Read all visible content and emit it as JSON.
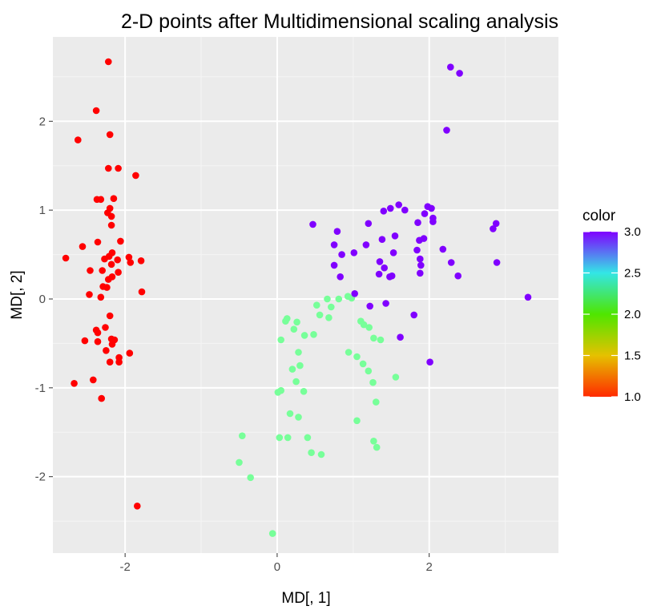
{
  "chart_data": {
    "type": "scatter",
    "title": "2-D points after Multidimensional scaling analysis",
    "xlabel": "MD[, 1]",
    "ylabel": "MD[, 2]",
    "xlim": [
      -2.95,
      3.7
    ],
    "ylim": [
      -2.86,
      2.95
    ],
    "x_ticks": [
      -2,
      0,
      2
    ],
    "x_tick_labels": [
      "-2",
      "0",
      "2"
    ],
    "y_ticks": [
      -2,
      -1,
      0,
      1,
      2
    ],
    "y_tick_labels": [
      "-2",
      "-1",
      "0",
      "1",
      "2"
    ],
    "grid": true,
    "legend": {
      "title": "color",
      "position": "right",
      "type": "colorbar",
      "range": [
        1.0,
        3.0
      ],
      "breaks": [
        1.0,
        1.5,
        2.0,
        2.5,
        3.0
      ],
      "break_labels": [
        "1.0",
        "1.5",
        "2.0",
        "2.5",
        "3.0"
      ]
    },
    "color_scale": {
      "stops": [
        {
          "value": 1.0,
          "color": "#ff2a00"
        },
        {
          "value": 1.5,
          "color": "#e5c100"
        },
        {
          "value": 2.0,
          "color": "#4fe600"
        },
        {
          "value": 2.5,
          "color": "#33e6e6"
        },
        {
          "value": 3.0,
          "color": "#8000ff"
        }
      ]
    },
    "series": [
      {
        "name": "1",
        "color_value": 1.0,
        "color": "#ff0000",
        "points": [
          [
            -2.22,
            2.67
          ],
          [
            -2.38,
            2.12
          ],
          [
            -2.62,
            1.79
          ],
          [
            -2.2,
            1.85
          ],
          [
            -2.22,
            1.47
          ],
          [
            -2.09,
            1.47
          ],
          [
            -1.86,
            1.39
          ],
          [
            -2.37,
            1.12
          ],
          [
            -2.32,
            1.12
          ],
          [
            -2.15,
            1.13
          ],
          [
            -2.2,
            1.02
          ],
          [
            -2.23,
            0.97
          ],
          [
            -2.18,
            0.93
          ],
          [
            -2.18,
            0.83
          ],
          [
            -2.56,
            0.59
          ],
          [
            -2.36,
            0.64
          ],
          [
            -2.06,
            0.65
          ],
          [
            -2.17,
            0.52
          ],
          [
            -2.21,
            0.48
          ],
          [
            -2.27,
            0.45
          ],
          [
            -2.1,
            0.44
          ],
          [
            -1.95,
            0.47
          ],
          [
            -1.93,
            0.41
          ],
          [
            -1.79,
            0.43
          ],
          [
            -2.78,
            0.46
          ],
          [
            -2.18,
            0.39
          ],
          [
            -2.46,
            0.32
          ],
          [
            -2.3,
            0.32
          ],
          [
            -2.09,
            0.3
          ],
          [
            -2.17,
            0.25
          ],
          [
            -2.22,
            0.22
          ],
          [
            -2.29,
            0.14
          ],
          [
            -2.24,
            0.13
          ],
          [
            -2.47,
            0.05
          ],
          [
            -1.78,
            0.08
          ],
          [
            -2.32,
            0.02
          ],
          [
            -2.2,
            -0.19
          ],
          [
            -2.38,
            -0.35
          ],
          [
            -2.36,
            -0.38
          ],
          [
            -2.26,
            -0.32
          ],
          [
            -2.53,
            -0.47
          ],
          [
            -2.36,
            -0.48
          ],
          [
            -2.18,
            -0.45
          ],
          [
            -2.14,
            -0.46
          ],
          [
            -2.17,
            -0.51
          ],
          [
            -2.25,
            -0.58
          ],
          [
            -2.08,
            -0.66
          ],
          [
            -1.94,
            -0.61
          ],
          [
            -2.2,
            -0.71
          ],
          [
            -2.08,
            -0.71
          ],
          [
            -2.42,
            -0.91
          ],
          [
            -2.67,
            -0.95
          ],
          [
            -2.31,
            -1.12
          ],
          [
            -1.84,
            -2.33
          ]
        ]
      },
      {
        "name": "2",
        "color_value": 2.0,
        "color": "#77ff99",
        "points": [
          [
            0.66,
            0.0
          ],
          [
            0.81,
            0.0
          ],
          [
            0.52,
            -0.07
          ],
          [
            0.71,
            -0.09
          ],
          [
            0.93,
            0.03
          ],
          [
            0.98,
            0.01
          ],
          [
            0.56,
            -0.18
          ],
          [
            0.68,
            -0.21
          ],
          [
            0.13,
            -0.22
          ],
          [
            0.11,
            -0.25
          ],
          [
            0.26,
            -0.26
          ],
          [
            0.22,
            -0.34
          ],
          [
            1.1,
            -0.25
          ],
          [
            1.14,
            -0.29
          ],
          [
            1.21,
            -0.32
          ],
          [
            0.05,
            -0.46
          ],
          [
            0.36,
            -0.41
          ],
          [
            0.48,
            -0.4
          ],
          [
            0.28,
            -0.6
          ],
          [
            0.94,
            -0.6
          ],
          [
            1.05,
            -0.65
          ],
          [
            1.27,
            -0.44
          ],
          [
            1.36,
            -0.46
          ],
          [
            0.3,
            -0.75
          ],
          [
            0.2,
            -0.79
          ],
          [
            1.13,
            -0.73
          ],
          [
            1.2,
            -0.81
          ],
          [
            0.25,
            -0.93
          ],
          [
            1.26,
            -0.94
          ],
          [
            1.56,
            -0.88
          ],
          [
            0.05,
            -1.03
          ],
          [
            0.01,
            -1.05
          ],
          [
            0.35,
            -1.04
          ],
          [
            0.17,
            -1.29
          ],
          [
            1.3,
            -1.16
          ],
          [
            0.28,
            -1.33
          ],
          [
            1.05,
            -1.37
          ],
          [
            0.03,
            -1.56
          ],
          [
            0.14,
            -1.56
          ],
          [
            0.4,
            -1.56
          ],
          [
            1.27,
            -1.6
          ],
          [
            1.31,
            -1.67
          ],
          [
            0.45,
            -1.73
          ],
          [
            0.58,
            -1.75
          ],
          [
            -0.46,
            -1.54
          ],
          [
            -0.5,
            -1.84
          ],
          [
            -0.35,
            -2.01
          ],
          [
            -0.06,
            -2.64
          ]
        ]
      },
      {
        "name": "3",
        "color_value": 3.0,
        "color": "#8000ff",
        "points": [
          [
            2.28,
            2.61
          ],
          [
            2.4,
            2.54
          ],
          [
            2.23,
            1.9
          ],
          [
            1.6,
            1.06
          ],
          [
            1.98,
            1.04
          ],
          [
            2.03,
            1.02
          ],
          [
            1.49,
            1.02
          ],
          [
            1.68,
            1.0
          ],
          [
            1.4,
            0.99
          ],
          [
            1.94,
            0.96
          ],
          [
            2.05,
            0.91
          ],
          [
            2.05,
            0.87
          ],
          [
            1.85,
            0.86
          ],
          [
            1.2,
            0.85
          ],
          [
            0.47,
            0.84
          ],
          [
            2.88,
            0.85
          ],
          [
            2.84,
            0.79
          ],
          [
            0.79,
            0.76
          ],
          [
            1.55,
            0.71
          ],
          [
            1.38,
            0.67
          ],
          [
            1.87,
            0.66
          ],
          [
            1.93,
            0.68
          ],
          [
            0.75,
            0.61
          ],
          [
            1.17,
            0.61
          ],
          [
            1.84,
            0.55
          ],
          [
            2.18,
            0.56
          ],
          [
            1.53,
            0.52
          ],
          [
            1.01,
            0.52
          ],
          [
            0.85,
            0.5
          ],
          [
            1.88,
            0.45
          ],
          [
            2.29,
            0.41
          ],
          [
            2.89,
            0.41
          ],
          [
            0.75,
            0.38
          ],
          [
            1.35,
            0.42
          ],
          [
            1.41,
            0.35
          ],
          [
            1.89,
            0.38
          ],
          [
            1.34,
            0.28
          ],
          [
            1.51,
            0.26
          ],
          [
            1.48,
            0.25
          ],
          [
            1.88,
            0.29
          ],
          [
            2.38,
            0.26
          ],
          [
            0.83,
            0.25
          ],
          [
            1.02,
            0.06
          ],
          [
            3.3,
            0.02
          ],
          [
            1.22,
            -0.08
          ],
          [
            1.43,
            -0.05
          ],
          [
            1.8,
            -0.18
          ],
          [
            1.62,
            -0.43
          ],
          [
            2.01,
            -0.71
          ]
        ]
      }
    ]
  }
}
